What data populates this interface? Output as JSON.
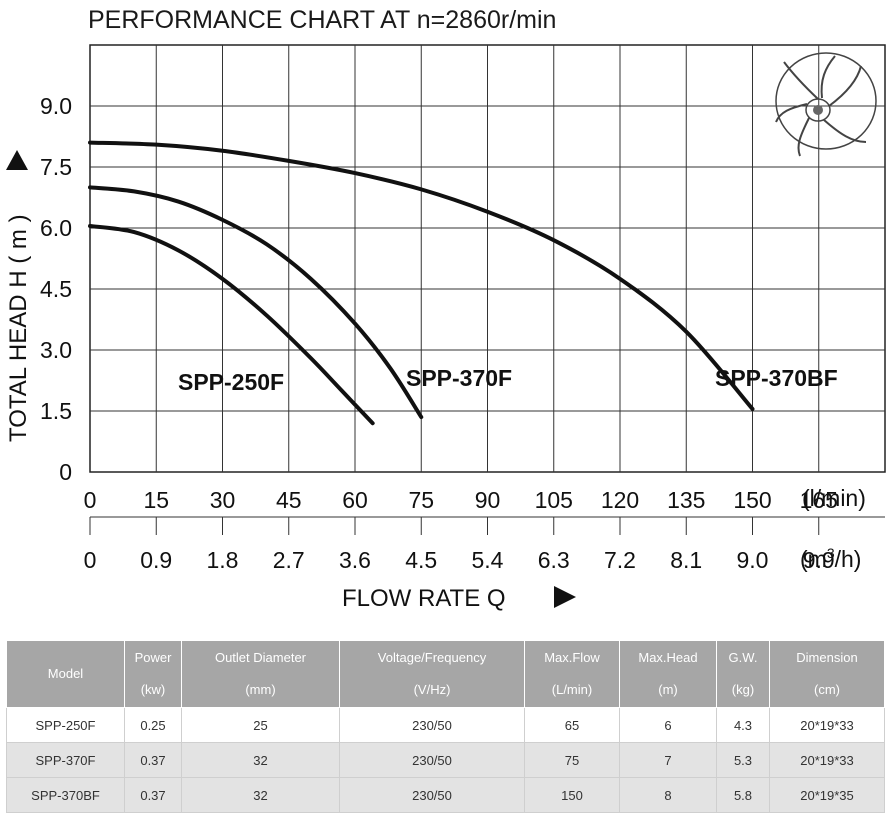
{
  "chart_data": {
    "type": "line",
    "title": "PERFORMANCE CHART AT n=2860r/min",
    "ylabel": "TOTAL HEAD H ( m )",
    "xlabel": "FLOW RATE Q",
    "y_ticks": [
      "0",
      "1.5",
      "3.0",
      "4.5",
      "6.0",
      "7.5",
      "9.0"
    ],
    "ylim": [
      0,
      10.5
    ],
    "x_ticks_lmin": [
      "0",
      "15",
      "30",
      "45",
      "60",
      "75",
      "90",
      "105",
      "120",
      "135",
      "150",
      "165"
    ],
    "x_unit_lmin": "(l/min)",
    "x_ticks_m3h": [
      "0",
      "0.9",
      "1.8",
      "2.7",
      "3.6",
      "4.5",
      "5.4",
      "6.3",
      "7.2",
      "8.1",
      "9.0",
      "9.9"
    ],
    "x_unit_m3h_prefix": "(m",
    "x_unit_m3h_sup": "3",
    "x_unit_m3h_suffix": "/h)",
    "xlim": [
      0,
      180
    ],
    "grid": true,
    "series": [
      {
        "name": "SPP-250F",
        "x": [
          0,
          10,
          20,
          30,
          40,
          50,
          57,
          64
        ],
        "y": [
          6.05,
          5.9,
          5.45,
          4.75,
          3.85,
          2.8,
          2.0,
          1.2
        ]
      },
      {
        "name": "SPP-370F",
        "x": [
          0,
          10,
          20,
          30,
          40,
          50,
          60,
          68,
          75
        ],
        "y": [
          7.0,
          6.9,
          6.65,
          6.2,
          5.6,
          4.75,
          3.65,
          2.55,
          1.35
        ]
      },
      {
        "name": "SPP-370BF",
        "x": [
          0,
          15,
          30,
          45,
          60,
          75,
          90,
          105,
          120,
          135,
          150
        ],
        "y": [
          8.1,
          8.05,
          7.9,
          7.65,
          7.35,
          6.95,
          6.4,
          5.7,
          4.75,
          3.45,
          1.55
        ]
      }
    ]
  },
  "table": {
    "headers": [
      {
        "top": "Model",
        "bottom": ""
      },
      {
        "top": "Power",
        "bottom": "(kw)"
      },
      {
        "top": "Outlet Diameter",
        "bottom": "(mm)"
      },
      {
        "top": "Voltage/Frequency",
        "bottom": "(V/Hz)"
      },
      {
        "top": "Max.Flow",
        "bottom": "(L/min)"
      },
      {
        "top": "Max.Head",
        "bottom": "(m)"
      },
      {
        "top": "G.W.",
        "bottom": "(kg)"
      },
      {
        "top": "Dimension",
        "bottom": "(cm)"
      }
    ],
    "rows": [
      [
        "SPP-250F",
        "0.25",
        "25",
        "230/50",
        "65",
        "6",
        "4.3",
        "20*19*33"
      ],
      [
        "SPP-370F",
        "0.37",
        "32",
        "230/50",
        "75",
        "7",
        "5.3",
        "20*19*33"
      ],
      [
        "SPP-370BF",
        "0.37",
        "32",
        "230/50",
        "150",
        "8",
        "5.8",
        "20*19*35"
      ]
    ]
  },
  "icon": "impeller-icon"
}
